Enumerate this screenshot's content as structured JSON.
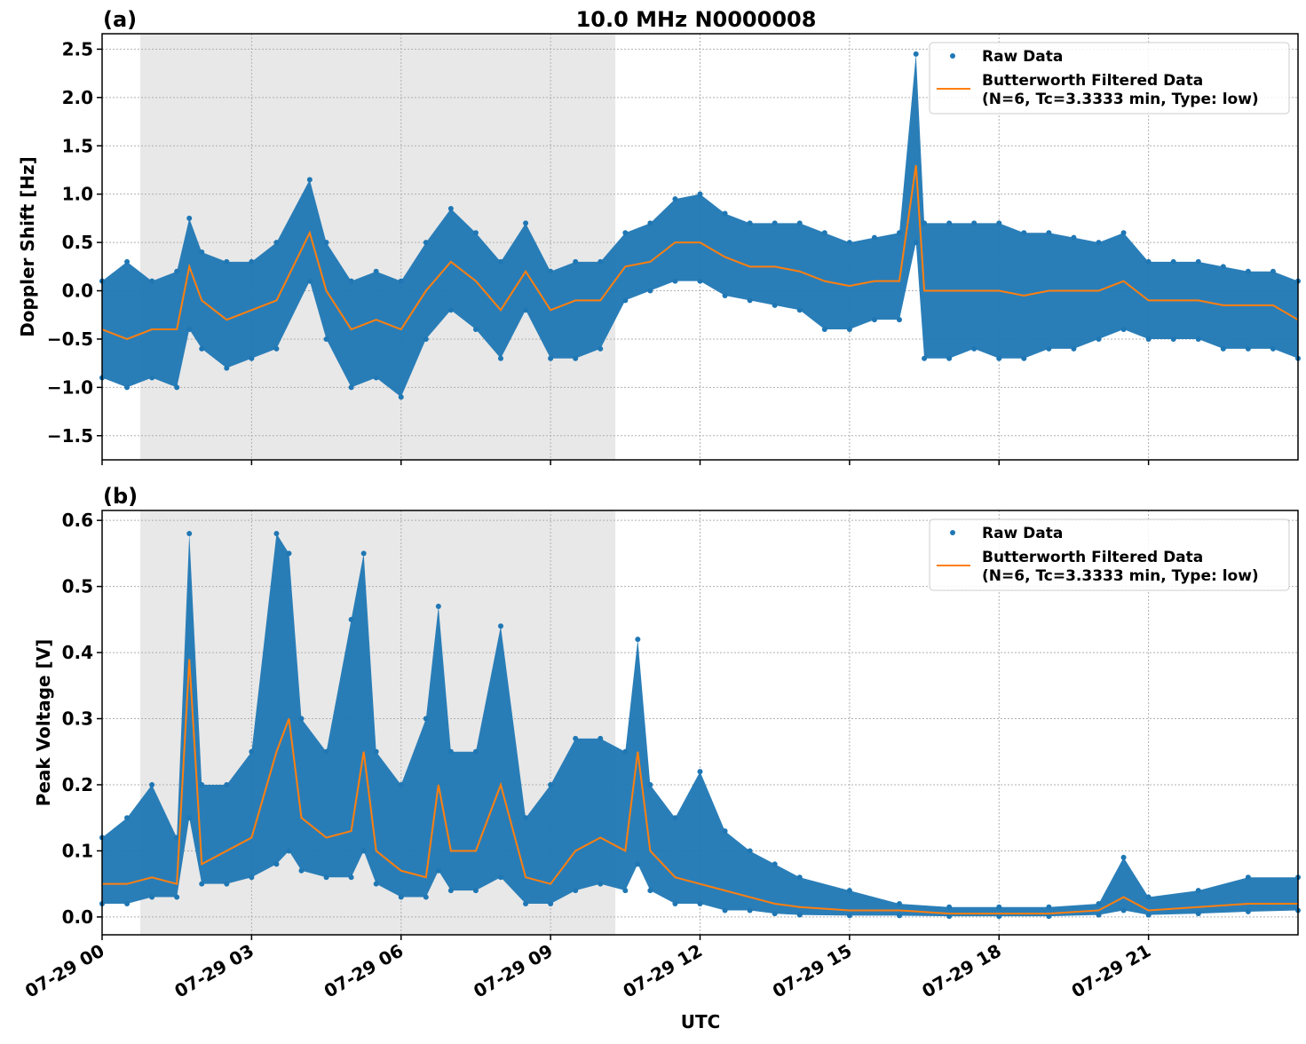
{
  "chart_data": [
    {
      "type": "scatter+line",
      "panel_label": "(a)",
      "title": "10.0 MHz N0000008",
      "ylabel": "Doppler Shift [Hz]",
      "xlabel": "",
      "xlim": [
        "07-29 00:00",
        "07-30 00:00"
      ],
      "ylim": [
        -1.75,
        2.66
      ],
      "yticks": [
        "2.5",
        "2.0",
        "1.5",
        "1.0",
        "0.5",
        "0.0",
        "−0.5",
        "−1.0",
        "−1.5"
      ],
      "ytick_values": [
        2.5,
        2.0,
        1.5,
        1.0,
        0.5,
        0.0,
        -0.5,
        -1.0,
        -1.5
      ],
      "grid": true,
      "legend_placement": "top-right",
      "shaded_interval": [
        "07-29 00:46",
        "07-29 10:18"
      ],
      "x": [
        "00:00",
        "00:30",
        "01:00",
        "01:30",
        "01:45",
        "02:00",
        "02:30",
        "03:00",
        "03:30",
        "04:10",
        "04:30",
        "05:00",
        "05:30",
        "06:00",
        "06:30",
        "07:00",
        "07:30",
        "08:00",
        "08:30",
        "09:00",
        "09:30",
        "10:00",
        "10:30",
        "11:00",
        "11:30",
        "12:00",
        "12:30",
        "13:00",
        "13:30",
        "14:00",
        "14:30",
        "15:00",
        "15:30",
        "16:00",
        "16:20",
        "16:30",
        "17:00",
        "17:30",
        "18:00",
        "18:30",
        "19:00",
        "19:30",
        "20:00",
        "20:30",
        "21:00",
        "21:30",
        "22:00",
        "22:30",
        "23:00",
        "23:30",
        "24:00"
      ],
      "series": [
        {
          "name": "Butterworth Filtered Data\n(N=6, Tc=3.3333 min, Type: low)",
          "kind": "line",
          "color": "#ff7f0e",
          "values": [
            -0.4,
            -0.5,
            -0.4,
            -0.4,
            0.25,
            -0.1,
            -0.3,
            -0.2,
            -0.1,
            0.6,
            0.0,
            -0.4,
            -0.3,
            -0.4,
            0.0,
            0.3,
            0.1,
            -0.2,
            0.2,
            -0.2,
            -0.1,
            -0.1,
            0.25,
            0.3,
            0.5,
            0.5,
            0.35,
            0.25,
            0.25,
            0.2,
            0.1,
            0.05,
            0.1,
            0.1,
            1.3,
            0.0,
            0.0,
            0.0,
            0.0,
            -0.05,
            0.0,
            0.0,
            0.0,
            0.1,
            -0.1,
            -0.1,
            -0.1,
            -0.15,
            -0.15,
            -0.15,
            -0.3
          ]
        },
        {
          "name": "Raw Data",
          "kind": "scatter-range",
          "color": "#1f77b4",
          "low": [
            -0.9,
            -1.0,
            -0.9,
            -1.0,
            -0.4,
            -0.6,
            -0.8,
            -0.7,
            -0.6,
            0.1,
            -0.5,
            -1.0,
            -0.9,
            -1.1,
            -0.5,
            -0.2,
            -0.4,
            -0.7,
            -0.2,
            -0.7,
            -0.7,
            -0.6,
            -0.1,
            0.0,
            0.1,
            0.1,
            -0.05,
            -0.1,
            -0.15,
            -0.2,
            -0.4,
            -0.4,
            -0.3,
            -0.3,
            0.5,
            -0.7,
            -0.7,
            -0.6,
            -0.7,
            -0.7,
            -0.6,
            -0.6,
            -0.5,
            -0.4,
            -0.5,
            -0.5,
            -0.5,
            -0.6,
            -0.6,
            -0.6,
            -0.7
          ],
          "high": [
            0.1,
            0.3,
            0.1,
            0.2,
            0.75,
            0.4,
            0.3,
            0.3,
            0.5,
            1.15,
            0.5,
            0.1,
            0.2,
            0.1,
            0.5,
            0.85,
            0.6,
            0.3,
            0.7,
            0.2,
            0.3,
            0.3,
            0.6,
            0.7,
            0.95,
            1.0,
            0.8,
            0.7,
            0.7,
            0.7,
            0.6,
            0.5,
            0.55,
            0.6,
            2.45,
            0.7,
            0.7,
            0.7,
            0.7,
            0.6,
            0.6,
            0.55,
            0.5,
            0.6,
            0.3,
            0.3,
            0.3,
            0.25,
            0.2,
            0.2,
            0.1
          ]
        }
      ]
    },
    {
      "type": "scatter+line",
      "panel_label": "(b)",
      "ylabel": "Peak Voltage [V]",
      "xlabel": "UTC",
      "xlim": [
        "07-29 00:00",
        "07-30 00:00"
      ],
      "ylim": [
        -0.027,
        0.615
      ],
      "yticks": [
        "0.6",
        "0.5",
        "0.4",
        "0.3",
        "0.2",
        "0.1",
        "0.0"
      ],
      "ytick_values": [
        0.6,
        0.5,
        0.4,
        0.3,
        0.2,
        0.1,
        0.0
      ],
      "xticks": [
        "07-29 00",
        "07-29 03",
        "07-29 06",
        "07-29 09",
        "07-29 12",
        "07-29 15",
        "07-29 18",
        "07-29 21"
      ],
      "xtick_hours": [
        0,
        3,
        6,
        9,
        12,
        15,
        18,
        21
      ],
      "grid": true,
      "legend_placement": "top-right",
      "shaded_interval": [
        "07-29 00:46",
        "07-29 10:18"
      ],
      "x": [
        "00:00",
        "00:30",
        "01:00",
        "01:30",
        "01:45",
        "02:00",
        "02:30",
        "03:00",
        "03:30",
        "03:45",
        "04:00",
        "04:30",
        "05:00",
        "05:15",
        "05:30",
        "06:00",
        "06:30",
        "06:45",
        "07:00",
        "07:30",
        "08:00",
        "08:30",
        "09:00",
        "09:30",
        "10:00",
        "10:30",
        "10:45",
        "11:00",
        "11:30",
        "12:00",
        "12:30",
        "13:00",
        "13:30",
        "14:00",
        "15:00",
        "16:00",
        "17:00",
        "18:00",
        "19:00",
        "20:00",
        "20:30",
        "21:00",
        "22:00",
        "23:00",
        "24:00"
      ],
      "series": [
        {
          "name": "Butterworth Filtered Data\n(N=6, Tc=3.3333 min, Type: low)",
          "kind": "line",
          "color": "#ff7f0e",
          "values": [
            0.05,
            0.05,
            0.06,
            0.05,
            0.39,
            0.08,
            0.1,
            0.12,
            0.25,
            0.3,
            0.15,
            0.12,
            0.13,
            0.25,
            0.1,
            0.07,
            0.06,
            0.2,
            0.1,
            0.1,
            0.2,
            0.06,
            0.05,
            0.1,
            0.12,
            0.1,
            0.25,
            0.1,
            0.06,
            0.05,
            0.04,
            0.03,
            0.02,
            0.015,
            0.01,
            0.01,
            0.005,
            0.005,
            0.005,
            0.01,
            0.03,
            0.01,
            0.015,
            0.02,
            0.02
          ]
        },
        {
          "name": "Raw Data",
          "kind": "scatter-range",
          "color": "#1f77b4",
          "low": [
            0.02,
            0.02,
            0.03,
            0.03,
            0.15,
            0.05,
            0.05,
            0.06,
            0.08,
            0.1,
            0.07,
            0.06,
            0.06,
            0.1,
            0.05,
            0.03,
            0.03,
            0.07,
            0.04,
            0.04,
            0.06,
            0.02,
            0.02,
            0.04,
            0.05,
            0.04,
            0.08,
            0.04,
            0.02,
            0.02,
            0.01,
            0.01,
            0.005,
            0.003,
            0.002,
            0.002,
            0.001,
            0.001,
            0.001,
            0.003,
            0.01,
            0.003,
            0.005,
            0.008,
            0.01
          ],
          "high": [
            0.12,
            0.15,
            0.2,
            0.12,
            0.58,
            0.2,
            0.2,
            0.25,
            0.58,
            0.55,
            0.3,
            0.25,
            0.45,
            0.55,
            0.25,
            0.2,
            0.3,
            0.47,
            0.25,
            0.25,
            0.44,
            0.15,
            0.2,
            0.27,
            0.27,
            0.25,
            0.42,
            0.2,
            0.15,
            0.22,
            0.13,
            0.1,
            0.08,
            0.06,
            0.04,
            0.02,
            0.015,
            0.015,
            0.015,
            0.02,
            0.09,
            0.03,
            0.04,
            0.06,
            0.06
          ]
        }
      ]
    }
  ],
  "legend": {
    "raw": "Raw Data",
    "filtered_line1": "Butterworth Filtered Data",
    "filtered_line2": "(N=6, Tc=3.3333 min, Type: low)"
  }
}
